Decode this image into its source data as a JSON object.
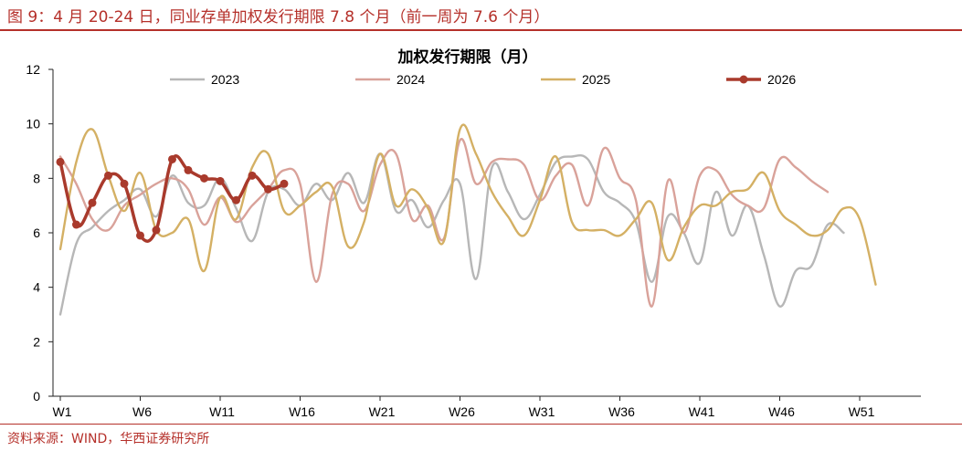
{
  "figure": {
    "caption": "图 9：4 月 20-24 日，同业存单加权发行期限 7.8 个月（前一周为 7.6 个月）",
    "source": "资料来源：WIND，华西证券研究所"
  },
  "colors": {
    "accent": "#b5302a",
    "s2023": "#b7b7b7",
    "s2024": "#d9a29a",
    "s2025": "#d4b064",
    "s2026": "#a93a2c"
  },
  "chart_data": {
    "type": "line",
    "title": "加权发行期限（月）",
    "xlabel": "",
    "ylabel": "",
    "ylim": [
      0,
      12
    ],
    "yticks": [
      0,
      2,
      4,
      6,
      8,
      10,
      12
    ],
    "xticks": [
      "W1",
      "W6",
      "W11",
      "W16",
      "W21",
      "W26",
      "W31",
      "W36",
      "W41",
      "W46",
      "W51"
    ],
    "xtick_weeks": [
      1,
      6,
      11,
      16,
      21,
      26,
      31,
      36,
      41,
      46,
      51
    ],
    "xrange": [
      1,
      53
    ],
    "legend_position": "top",
    "series": [
      {
        "name": "2023",
        "color_key": "s2023",
        "markers": false,
        "x": [
          1,
          2,
          3,
          4,
          5,
          6,
          7,
          8,
          9,
          10,
          11,
          12,
          13,
          14,
          15,
          16,
          17,
          18,
          19,
          20,
          21,
          22,
          23,
          24,
          25,
          26,
          27,
          28,
          29,
          30,
          31,
          32,
          33,
          34,
          35,
          36,
          37,
          38,
          39,
          40,
          41,
          42,
          43,
          44,
          45,
          46,
          47,
          48,
          49,
          50,
          51
        ],
        "values": [
          3.0,
          5.6,
          6.2,
          6.8,
          7.2,
          7.6,
          6.6,
          8.1,
          7.1,
          7.0,
          8.0,
          6.9,
          5.7,
          7.5,
          7.6,
          7.0,
          7.8,
          7.2,
          8.2,
          7.1,
          8.9,
          6.8,
          7.2,
          6.2,
          7.2,
          7.8,
          4.3,
          8.4,
          7.5,
          6.5,
          7.4,
          8.6,
          8.8,
          8.7,
          7.5,
          7.1,
          6.4,
          4.2,
          6.6,
          6.0,
          4.9,
          7.5,
          5.9,
          7.0,
          5.2,
          3.3,
          4.6,
          4.8,
          6.3,
          6.0,
          null
        ]
      },
      {
        "name": "2024",
        "color_key": "s2024",
        "markers": false,
        "x": [
          1,
          2,
          3,
          4,
          5,
          6,
          7,
          8,
          9,
          10,
          11,
          12,
          13,
          14,
          15,
          16,
          17,
          18,
          19,
          20,
          21,
          22,
          23,
          24,
          25,
          26,
          27,
          28,
          29,
          30,
          31,
          32,
          33,
          34,
          35,
          36,
          37,
          38,
          39,
          40,
          41,
          42,
          43,
          44,
          45,
          46,
          47,
          48,
          49,
          50,
          51
        ],
        "values": [
          8.8,
          7.8,
          6.5,
          6.1,
          7.0,
          7.4,
          7.8,
          8.0,
          7.6,
          6.3,
          7.3,
          6.4,
          7.0,
          7.6,
          8.3,
          7.8,
          4.2,
          7.4,
          7.8,
          6.8,
          8.5,
          8.9,
          6.5,
          7.0,
          5.8,
          9.4,
          7.8,
          8.6,
          8.7,
          8.5,
          7.2,
          8.1,
          8.5,
          7.0,
          9.1,
          8.0,
          7.2,
          3.3,
          7.9,
          6.0,
          8.1,
          8.3,
          7.4,
          7.0,
          6.9,
          8.7,
          8.4,
          7.9,
          7.5,
          null,
          null
        ]
      },
      {
        "name": "2025",
        "color_key": "s2025",
        "markers": false,
        "x": [
          1,
          2,
          3,
          4,
          5,
          6,
          7,
          8,
          9,
          10,
          11,
          12,
          13,
          14,
          15,
          16,
          17,
          18,
          19,
          20,
          21,
          22,
          23,
          24,
          25,
          26,
          27,
          28,
          29,
          30,
          31,
          32,
          33,
          34,
          35,
          36,
          37,
          38,
          39,
          40,
          41,
          42,
          43,
          44,
          45,
          46,
          47,
          48,
          49,
          50,
          51,
          52
        ],
        "values": [
          5.4,
          8.6,
          9.8,
          8.1,
          6.8,
          8.2,
          6.1,
          6.0,
          6.5,
          4.6,
          7.3,
          6.5,
          8.4,
          8.9,
          6.8,
          7.0,
          7.5,
          7.7,
          5.5,
          6.4,
          8.9,
          7.0,
          7.6,
          6.9,
          5.7,
          9.8,
          8.9,
          7.5,
          6.6,
          5.9,
          7.2,
          8.8,
          6.4,
          6.1,
          6.1,
          5.9,
          6.5,
          7.1,
          5.0,
          6.2,
          7.0,
          7.0,
          7.5,
          7.6,
          8.2,
          6.8,
          6.3,
          5.9,
          6.1,
          6.9,
          6.5,
          4.1
        ]
      },
      {
        "name": "2026",
        "color_key": "s2026",
        "markers": true,
        "x": [
          1,
          2,
          3,
          4,
          5,
          6,
          7,
          8,
          9,
          10,
          11,
          12,
          13,
          14,
          15
        ],
        "values": [
          8.6,
          6.3,
          7.1,
          8.1,
          7.8,
          5.9,
          6.1,
          8.7,
          8.3,
          8.0,
          7.9,
          7.2,
          8.1,
          7.6,
          7.8
        ]
      }
    ]
  }
}
